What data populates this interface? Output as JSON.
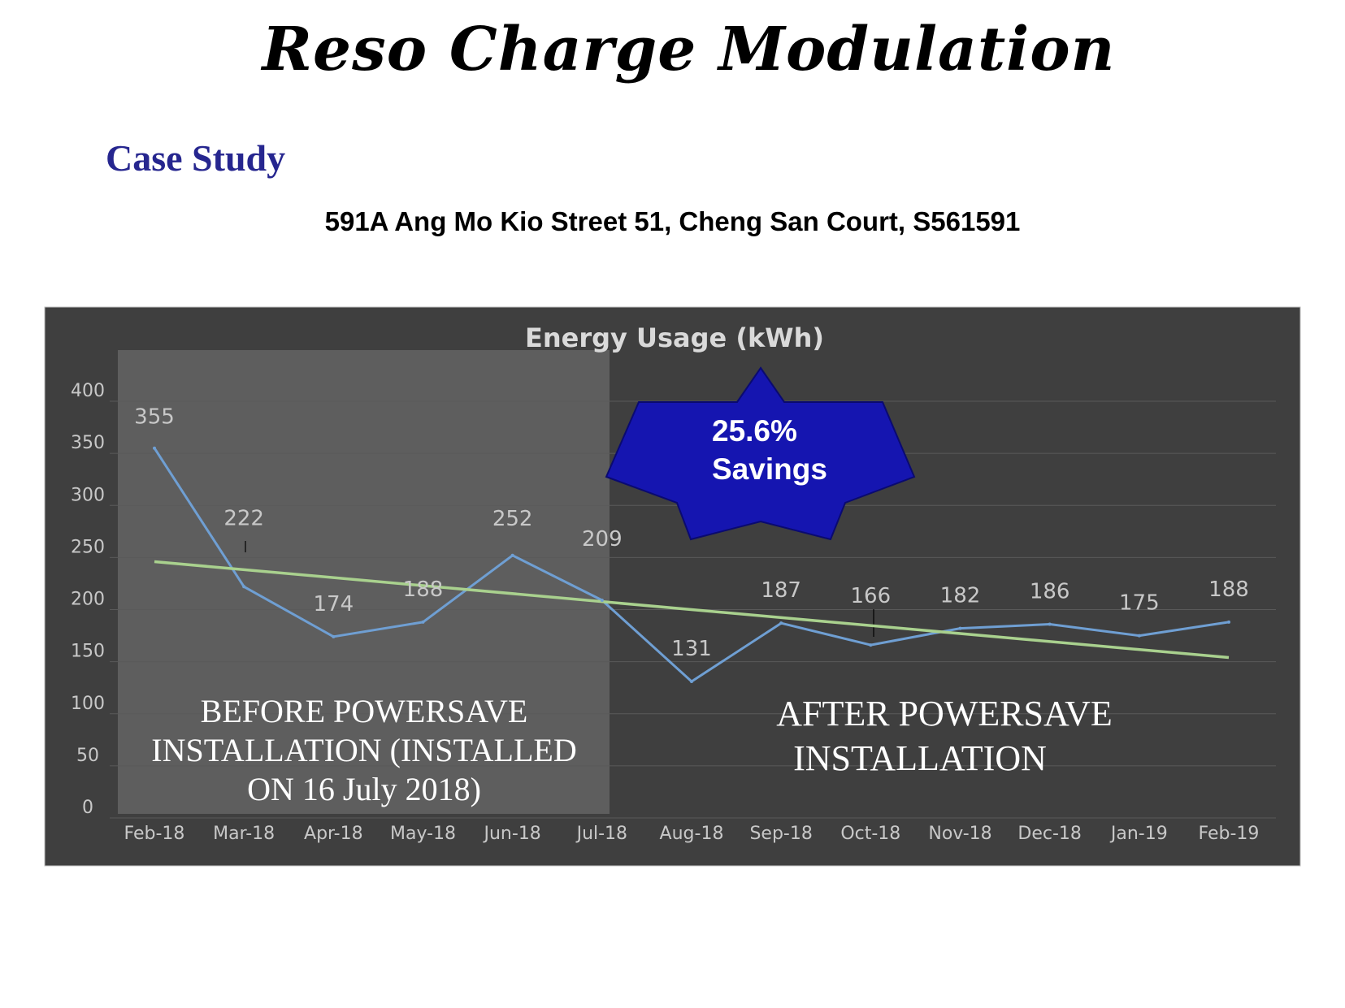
{
  "slide": {
    "title": "Reso Charge Modulation",
    "section": "Case Study",
    "address": "591A Ang Mo Kio Street 51, Cheng San Court, S561591"
  },
  "callout": {
    "line1": "25.6%",
    "line2": "Savings"
  },
  "annotations": {
    "before": [
      "BEFORE POWERSAVE",
      "INSTALLATION (INSTALLED",
      "ON 16 July 2018)"
    ],
    "after": [
      "AFTER POWERSAVE",
      "INSTALLATION"
    ]
  },
  "colors": {
    "chart_bg": "#3f3f3f",
    "before_region": "#5e5e5e",
    "usage_line": "#6f9fd3",
    "trend_line": "#a9d18e",
    "star_fill": "#1515b0",
    "grid": "#5a5a5a",
    "tick_text": "#c8c8c8"
  },
  "chart_data": {
    "type": "line",
    "title": "Energy Usage (kWh)",
    "categories": [
      "Feb-18",
      "Mar-18",
      "Apr-18",
      "May-18",
      "Jun-18",
      "Jul-18",
      "Aug-18",
      "Sep-18",
      "Oct-18",
      "Nov-18",
      "Dec-18",
      "Jan-19",
      "Feb-19"
    ],
    "series": [
      {
        "values": [
          355,
          222,
          174,
          188,
          252,
          209,
          131,
          187,
          166,
          182,
          186,
          175,
          188
        ],
        "data_labels": [
          "355",
          "222",
          "174",
          "188",
          "252",
          "209",
          "131",
          "187",
          "166",
          "182",
          "186",
          "175",
          "188"
        ]
      }
    ],
    "trendline": {
      "type": "linear",
      "start": 246,
      "end": 154
    },
    "ylim": [
      0,
      400
    ],
    "yticks": [
      0,
      50,
      100,
      150,
      200,
      250,
      300,
      350,
      400
    ],
    "grid": true,
    "legend": "none"
  }
}
